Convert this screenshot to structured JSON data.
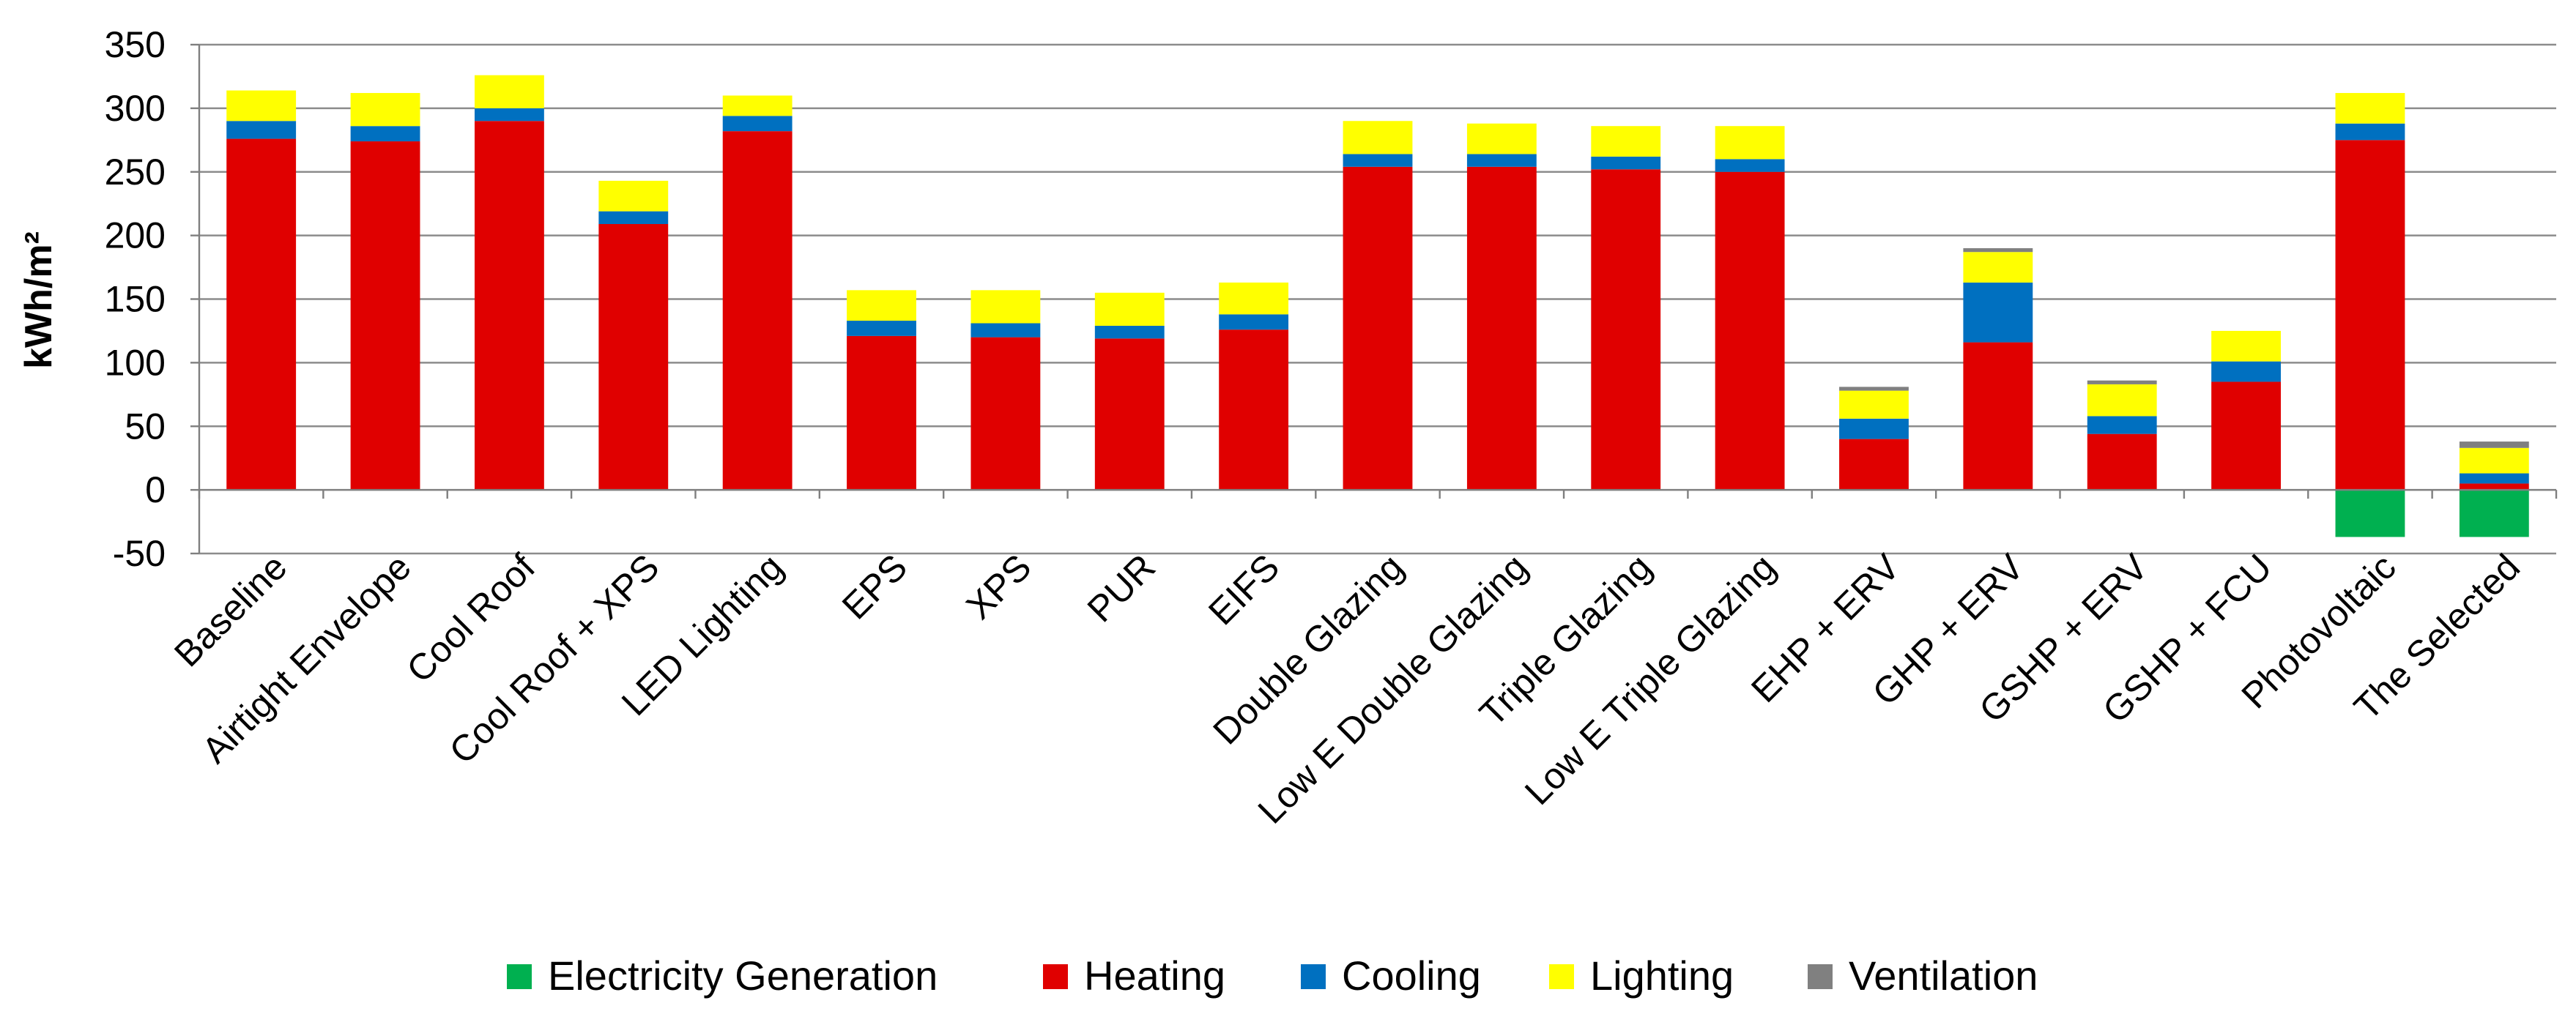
{
  "chart_data": {
    "type": "bar",
    "stacked": true,
    "title": "",
    "xlabel": "",
    "ylabel": "kWh/m²",
    "ylim": [
      -50,
      350
    ],
    "yticks": [
      -50,
      0,
      50,
      100,
      150,
      200,
      250,
      300,
      350
    ],
    "grid": true,
    "legend_position": "bottom",
    "categories": [
      "Baseline",
      "Airtight Envelope",
      "Cool Roof",
      "Cool Roof + XPS",
      "LED Lighting",
      "EPS",
      "XPS",
      "PUR",
      "EIFS",
      "Double Glazing",
      "Low E Double Glazing",
      "Triple Glazing",
      "Low E Triple Glazing",
      "EHP + ERV",
      "GHP + ERV",
      "GSHP + ERV",
      "GSHP + FCU",
      "Photovoltaic",
      "The Selected"
    ],
    "series": [
      {
        "name": "Electricity Generation",
        "color": "#00b050",
        "values": [
          0,
          0,
          0,
          0,
          0,
          0,
          0,
          0,
          0,
          0,
          0,
          0,
          0,
          0,
          0,
          0,
          0,
          -37,
          -37
        ]
      },
      {
        "name": "Heating",
        "color": "#e00000",
        "values": [
          276,
          274,
          290,
          209,
          282,
          121,
          120,
          119,
          126,
          254,
          254,
          252,
          250,
          40,
          116,
          44,
          85,
          275,
          5
        ]
      },
      {
        "name": "Cooling",
        "color": "#0070c0",
        "values": [
          14,
          12,
          10,
          10,
          12,
          12,
          11,
          10,
          12,
          10,
          10,
          10,
          10,
          16,
          47,
          14,
          16,
          13,
          8
        ]
      },
      {
        "name": "Lighting",
        "color": "#ffff00",
        "values": [
          24,
          26,
          26,
          24,
          16,
          24,
          26,
          26,
          25,
          26,
          24,
          24,
          26,
          22,
          24,
          25,
          24,
          24,
          20
        ]
      },
      {
        "name": "Ventilation",
        "color": "#808080",
        "values": [
          0,
          0,
          0,
          0,
          0,
          0,
          0,
          0,
          0,
          0,
          0,
          0,
          0,
          3,
          3,
          3,
          0,
          0,
          5
        ]
      }
    ]
  }
}
